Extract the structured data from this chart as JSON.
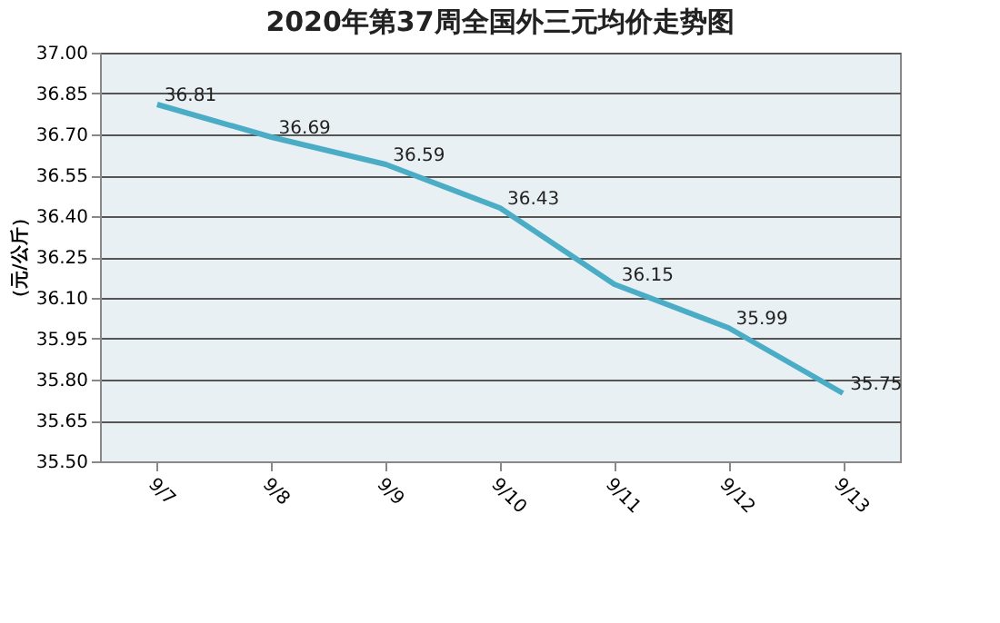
{
  "chart_data": {
    "type": "line",
    "title": "2020年第37周全国外三元均价走势图",
    "ylabel": "（元/公斤）",
    "categories": [
      "9/7",
      "9/8",
      "9/9",
      "9/10",
      "9/11",
      "9/12",
      "9/13"
    ],
    "series": [
      {
        "color": "#4bacc6",
        "values": [
          36.81,
          36.69,
          36.59,
          36.43,
          36.15,
          35.99,
          35.75
        ]
      }
    ],
    "ylim": [
      35.5,
      37.0
    ],
    "yticks": [
      {
        "value": 35.5,
        "label": "35.50"
      },
      {
        "value": 35.65,
        "label": "35.65"
      },
      {
        "value": 35.8,
        "label": "35.80"
      },
      {
        "value": 35.95,
        "label": "35.95"
      },
      {
        "value": 36.1,
        "label": "36.10"
      },
      {
        "value": 36.25,
        "label": "36.25"
      },
      {
        "value": 36.4,
        "label": "36.40"
      },
      {
        "value": 36.55,
        "label": "36.55"
      },
      {
        "value": 36.7,
        "label": "36.70"
      },
      {
        "value": 36.85,
        "label": "36.85"
      },
      {
        "value": 37.0,
        "label": "37.00"
      }
    ],
    "grid": "y",
    "data_labels": true,
    "marker": "none",
    "line_style": "solid"
  }
}
